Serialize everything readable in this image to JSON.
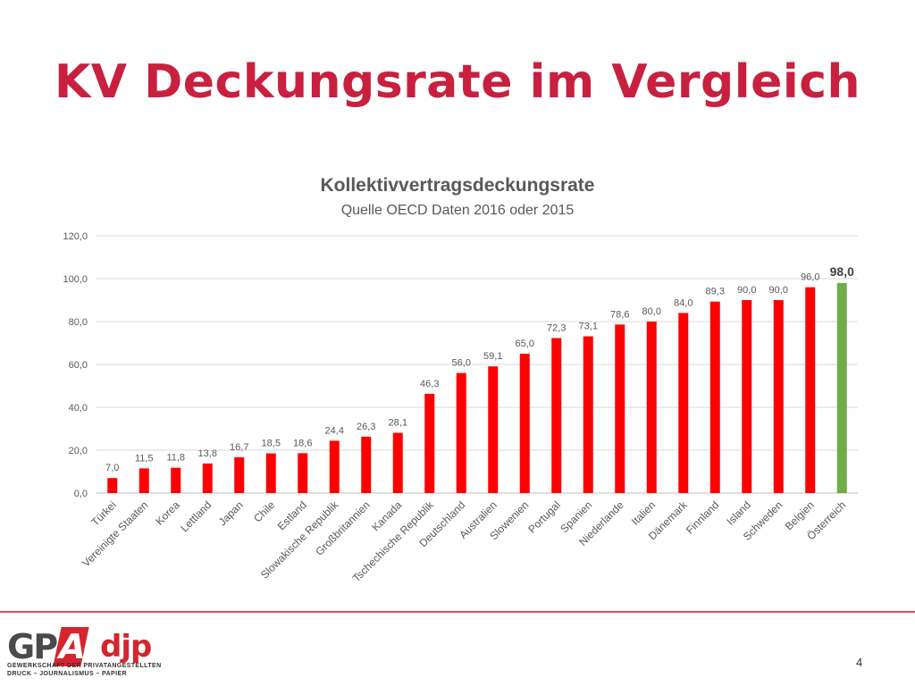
{
  "slide": {
    "title": "KV Deckungsrate im Vergleich",
    "page_number": "4"
  },
  "logo": {
    "gpa": "GP",
    "gpa_a": "A",
    "djp": "djp",
    "line1": "GEWERKSCHAFT DER PRIVATANGESTELLTEN",
    "line2": "DRUCK – JOURNALISMUS – PAPIER"
  },
  "colors": {
    "title": "#c8203e",
    "bar": "#ff0000",
    "highlight_bar": "#70ad47",
    "footer_line": "#d9534f"
  },
  "chart_data": {
    "type": "bar",
    "title": "Kollektivvertragsdeckungsrate",
    "subtitle": "Quelle OECD Daten 2016 oder 2015",
    "xlabel": "",
    "ylabel": "",
    "ylim": [
      0,
      120
    ],
    "yticks": [
      "0,0",
      "20,0",
      "40,0",
      "60,0",
      "80,0",
      "100,0",
      "120,0"
    ],
    "grid": true,
    "legend": "none",
    "categories": [
      "Türkei",
      "Vereinigte Staaten",
      "Korea",
      "Lettland",
      "Japan",
      "Chile",
      "Estland",
      "Slowakische Republik",
      "Großbritannien",
      "Kanada",
      "Tschechische Republik",
      "Deutschland",
      "Australien",
      "Slowenien",
      "Portugal",
      "Spanien",
      "Niederlande",
      "Italien",
      "Dänemark",
      "Finnland",
      "Island",
      "Schweden",
      "Belgien",
      "Österreich"
    ],
    "values": [
      7.0,
      11.5,
      11.8,
      13.8,
      16.7,
      18.5,
      18.6,
      24.4,
      26.3,
      28.1,
      46.3,
      56.0,
      59.1,
      65.0,
      72.3,
      73.1,
      78.6,
      80.0,
      84.0,
      89.3,
      90.0,
      90.0,
      96.0,
      98.0
    ],
    "value_labels": [
      "7,0",
      "11,5",
      "11,8",
      "13,8",
      "16,7",
      "18,5",
      "18,6",
      "24,4",
      "26,3",
      "28,1",
      "46,3",
      "56,0",
      "59,1",
      "65,0",
      "72,3",
      "73,1",
      "78,6",
      "80,0",
      "84,0",
      "89,3",
      "90,0",
      "90,0",
      "96,0",
      "98,0"
    ],
    "highlight_category": "Österreich"
  }
}
